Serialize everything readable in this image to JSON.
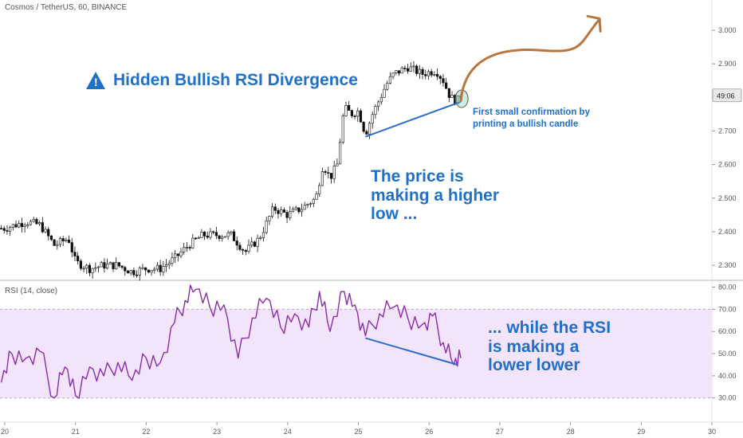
{
  "header": {
    "price_title": "Cosmos / TetherUS, 60, BINANCE",
    "rsi_title": "RSI (14, close)"
  },
  "annotations": {
    "title": "Hidden Bullish RSI Divergence",
    "warning_glyph": "!",
    "price_note": "The price is\nmaking a higher\nlow ...",
    "rsi_note": "... while the RSI\nis making a\nlower lower",
    "confirmation_note": "First small confirmation by\nprinting a bullish candle",
    "label_color": "#2170c8",
    "arrow_color": "#b8753d"
  },
  "chart_data": [
    {
      "type": "candlestick",
      "symbol": "Cosmos / TetherUS",
      "interval": "60",
      "exchange": "BINANCE",
      "ylim": [
        2.26,
        3.09
      ],
      "y_ticks": [
        "2.300",
        "2.400",
        "2.500",
        "2.600",
        "2.700",
        "2.800",
        "2.900",
        "3.000"
      ],
      "current_price_label": "49:06",
      "current_price": 2.806,
      "x_ticks": [
        "20",
        "21",
        "22",
        "23",
        "24",
        "25",
        "26",
        "27",
        "28",
        "29",
        "30"
      ],
      "close_series": [
        {
          "day": 20.0,
          "close": 2.41
        },
        {
          "day": 20.3,
          "close": 2.43
        },
        {
          "day": 20.5,
          "close": 2.42
        },
        {
          "day": 20.7,
          "close": 2.36
        },
        {
          "day": 20.9,
          "close": 2.38
        },
        {
          "day": 21.0,
          "close": 2.31
        },
        {
          "day": 21.2,
          "close": 2.29
        },
        {
          "day": 21.4,
          "close": 2.3
        },
        {
          "day": 21.6,
          "close": 2.3
        },
        {
          "day": 21.8,
          "close": 2.28
        },
        {
          "day": 22.0,
          "close": 2.29
        },
        {
          "day": 22.2,
          "close": 2.29
        },
        {
          "day": 22.4,
          "close": 2.32
        },
        {
          "day": 22.6,
          "close": 2.36
        },
        {
          "day": 22.8,
          "close": 2.39
        },
        {
          "day": 23.0,
          "close": 2.39
        },
        {
          "day": 23.2,
          "close": 2.39
        },
        {
          "day": 23.4,
          "close": 2.34
        },
        {
          "day": 23.6,
          "close": 2.38
        },
        {
          "day": 23.8,
          "close": 2.47
        },
        {
          "day": 24.0,
          "close": 2.45
        },
        {
          "day": 24.2,
          "close": 2.47
        },
        {
          "day": 24.4,
          "close": 2.5
        },
        {
          "day": 24.5,
          "close": 2.6
        },
        {
          "day": 24.6,
          "close": 2.56
        },
        {
          "day": 24.7,
          "close": 2.6
        },
        {
          "day": 24.8,
          "close": 2.77
        },
        {
          "day": 24.9,
          "close": 2.75
        },
        {
          "day": 25.0,
          "close": 2.76
        },
        {
          "day": 25.1,
          "close": 2.69
        },
        {
          "day": 25.2,
          "close": 2.75
        },
        {
          "day": 25.4,
          "close": 2.84
        },
        {
          "day": 25.5,
          "close": 2.87
        },
        {
          "day": 25.7,
          "close": 2.89
        },
        {
          "day": 25.9,
          "close": 2.87
        },
        {
          "day": 26.1,
          "close": 2.88
        },
        {
          "day": 26.2,
          "close": 2.85
        },
        {
          "day": 26.3,
          "close": 2.8
        },
        {
          "day": 26.4,
          "close": 2.79
        },
        {
          "day": 26.45,
          "close": 2.806
        }
      ],
      "trendline": {
        "from": {
          "day": 25.1,
          "price": 2.683
        },
        "to": {
          "day": 26.45,
          "price": 2.787
        }
      },
      "projection_arrow": {
        "from": {
          "day": 26.45,
          "price": 2.79
        },
        "to": {
          "day": 28.4,
          "price": 3.03
        }
      }
    },
    {
      "type": "line",
      "name": "RSI (14, close)",
      "ylim": [
        22,
        82
      ],
      "y_ticks": [
        "30.00",
        "40.00",
        "50.00",
        "60.00",
        "70.00",
        "80.00"
      ],
      "band": [
        30,
        70
      ],
      "x_ticks": [
        "20",
        "21",
        "22",
        "23",
        "24",
        "25",
        "26",
        "27",
        "28",
        "29",
        "30"
      ],
      "points": [
        {
          "day": 19.95,
          "rsi": 37
        },
        {
          "day": 20.1,
          "rsi": 50
        },
        {
          "day": 20.3,
          "rsi": 48
        },
        {
          "day": 20.5,
          "rsi": 51
        },
        {
          "day": 20.7,
          "rsi": 30
        },
        {
          "day": 20.85,
          "rsi": 44
        },
        {
          "day": 21.0,
          "rsi": 31
        },
        {
          "day": 21.2,
          "rsi": 44
        },
        {
          "day": 21.4,
          "rsi": 40
        },
        {
          "day": 21.6,
          "rsi": 46
        },
        {
          "day": 21.8,
          "rsi": 38
        },
        {
          "day": 22.0,
          "rsi": 48
        },
        {
          "day": 22.2,
          "rsi": 46
        },
        {
          "day": 22.4,
          "rsi": 64
        },
        {
          "day": 22.55,
          "rsi": 74
        },
        {
          "day": 22.7,
          "rsi": 79
        },
        {
          "day": 22.9,
          "rsi": 71
        },
        {
          "day": 23.1,
          "rsi": 72
        },
        {
          "day": 23.3,
          "rsi": 48
        },
        {
          "day": 23.5,
          "rsi": 66
        },
        {
          "day": 23.7,
          "rsi": 75
        },
        {
          "day": 23.9,
          "rsi": 62
        },
        {
          "day": 24.1,
          "rsi": 68
        },
        {
          "day": 24.3,
          "rsi": 62
        },
        {
          "day": 24.45,
          "rsi": 78
        },
        {
          "day": 24.6,
          "rsi": 60
        },
        {
          "day": 24.8,
          "rsi": 78
        },
        {
          "day": 24.95,
          "rsi": 72
        },
        {
          "day": 25.1,
          "rsi": 58
        },
        {
          "day": 25.3,
          "rsi": 68
        },
        {
          "day": 25.5,
          "rsi": 71
        },
        {
          "day": 25.7,
          "rsi": 66
        },
        {
          "day": 25.9,
          "rsi": 63
        },
        {
          "day": 26.05,
          "rsi": 67
        },
        {
          "day": 26.2,
          "rsi": 55
        },
        {
          "day": 26.35,
          "rsi": 45
        },
        {
          "day": 26.45,
          "rsi": 48
        }
      ],
      "trendline": {
        "from": {
          "day": 25.1,
          "rsi": 57
        },
        "to": {
          "day": 26.4,
          "rsi": 45
        }
      }
    }
  ]
}
